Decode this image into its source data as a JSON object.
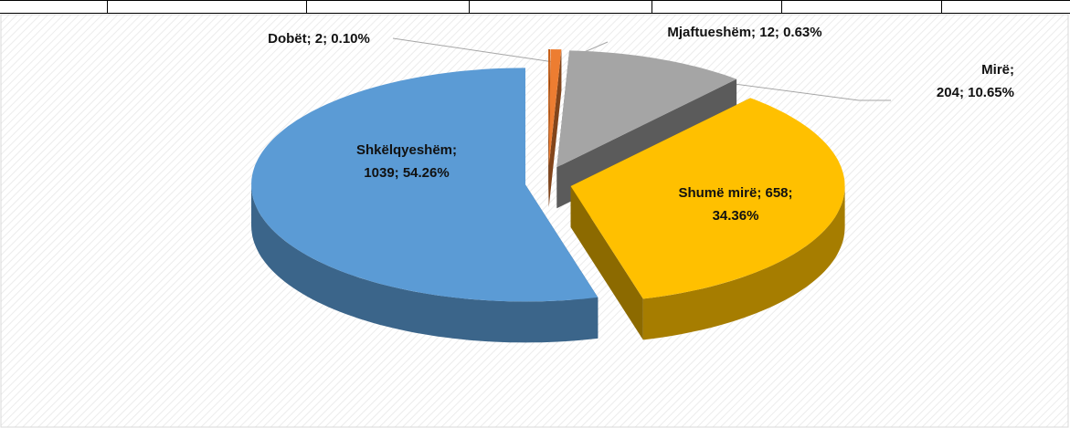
{
  "chart_data": {
    "type": "pie3d",
    "categories": [
      "Dobët",
      "Mjaftueshëm",
      "Mirë",
      "Shumë mirë",
      "Shkëlqyeshëm"
    ],
    "values": [
      2,
      12,
      204,
      658,
      1039
    ],
    "value_labels": [
      [
        "Dobët; 2; 0.10%"
      ],
      [
        "Mjaftueshëm; 12; 0.63%"
      ],
      [
        "Mirë;",
        "204; 10.65%"
      ],
      [
        "Shumë mirë; 658;",
        "34.36%"
      ],
      [
        "Shkëlqyeshëm;",
        "1039; 54.26%"
      ]
    ],
    "colors": [
      "#c55a11",
      "#ed7d31",
      "#a5a5a5",
      "#ffc000",
      "#5b9bd5"
    ]
  }
}
